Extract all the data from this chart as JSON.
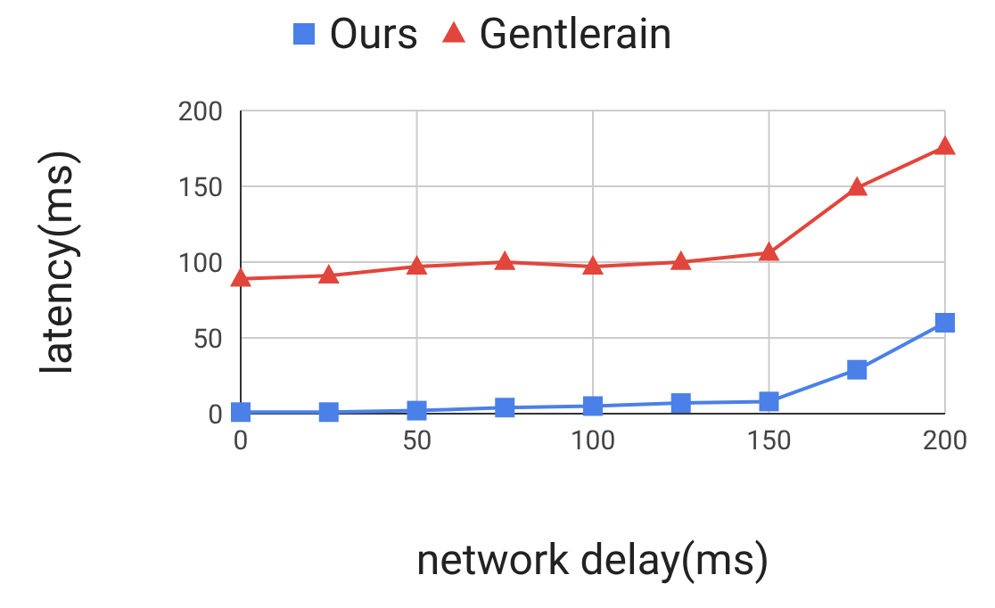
{
  "chart_data": {
    "type": "line",
    "xlabel": "network delay(ms)",
    "ylabel": "latency(ms)",
    "x": [
      0,
      25,
      50,
      75,
      100,
      125,
      150,
      175,
      200
    ],
    "series": [
      {
        "name": "Ours",
        "color": "#4a80e8",
        "marker": "square",
        "values": [
          1,
          1,
          2,
          4,
          5,
          7,
          8,
          29,
          60
        ]
      },
      {
        "name": "Gentlerain",
        "color": "#e2453c",
        "marker": "triangle",
        "values": [
          89,
          91,
          97,
          100,
          97,
          100,
          106,
          149,
          176
        ]
      }
    ],
    "xlim": [
      0,
      200
    ],
    "xticks": [
      0,
      50,
      100,
      150,
      200
    ],
    "ylim": [
      0,
      200
    ],
    "yticks": [
      0,
      50,
      100,
      150,
      200
    ],
    "grid": true,
    "legend": "top"
  }
}
